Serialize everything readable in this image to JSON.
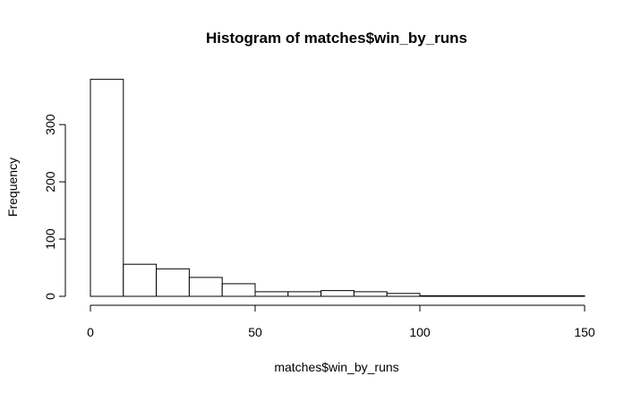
{
  "chart_data": {
    "type": "bar",
    "title": "Histogram of matches$win_by_runs",
    "xlabel": "matches$win_by_runs",
    "ylabel": "Frequency",
    "bins": [
      {
        "from": 0,
        "to": 10,
        "count": 379
      },
      {
        "from": 10,
        "to": 20,
        "count": 56
      },
      {
        "from": 20,
        "to": 30,
        "count": 48
      },
      {
        "from": 30,
        "to": 40,
        "count": 33
      },
      {
        "from": 40,
        "to": 50,
        "count": 22
      },
      {
        "from": 50,
        "to": 60,
        "count": 8
      },
      {
        "from": 60,
        "to": 70,
        "count": 8
      },
      {
        "from": 70,
        "to": 80,
        "count": 10
      },
      {
        "from": 80,
        "to": 90,
        "count": 8
      },
      {
        "from": 90,
        "to": 100,
        "count": 5
      },
      {
        "from": 100,
        "to": 110,
        "count": 1
      },
      {
        "from": 110,
        "to": 120,
        "count": 1
      },
      {
        "from": 120,
        "to": 130,
        "count": 1
      },
      {
        "from": 130,
        "to": 140,
        "count": 1
      },
      {
        "from": 140,
        "to": 150,
        "count": 1
      }
    ],
    "xlim": [
      0,
      150
    ],
    "ylim": [
      0,
      380
    ],
    "x_ticks": [
      0,
      50,
      100,
      150
    ],
    "x_tick_labels": [
      "0",
      "50",
      "100",
      "150"
    ],
    "y_ticks": [
      0,
      100,
      200,
      300
    ],
    "y_tick_labels": [
      "0",
      "100",
      "200",
      "300"
    ],
    "grid": false,
    "bar_fill": "#ffffff",
    "bar_stroke": "#000000"
  }
}
